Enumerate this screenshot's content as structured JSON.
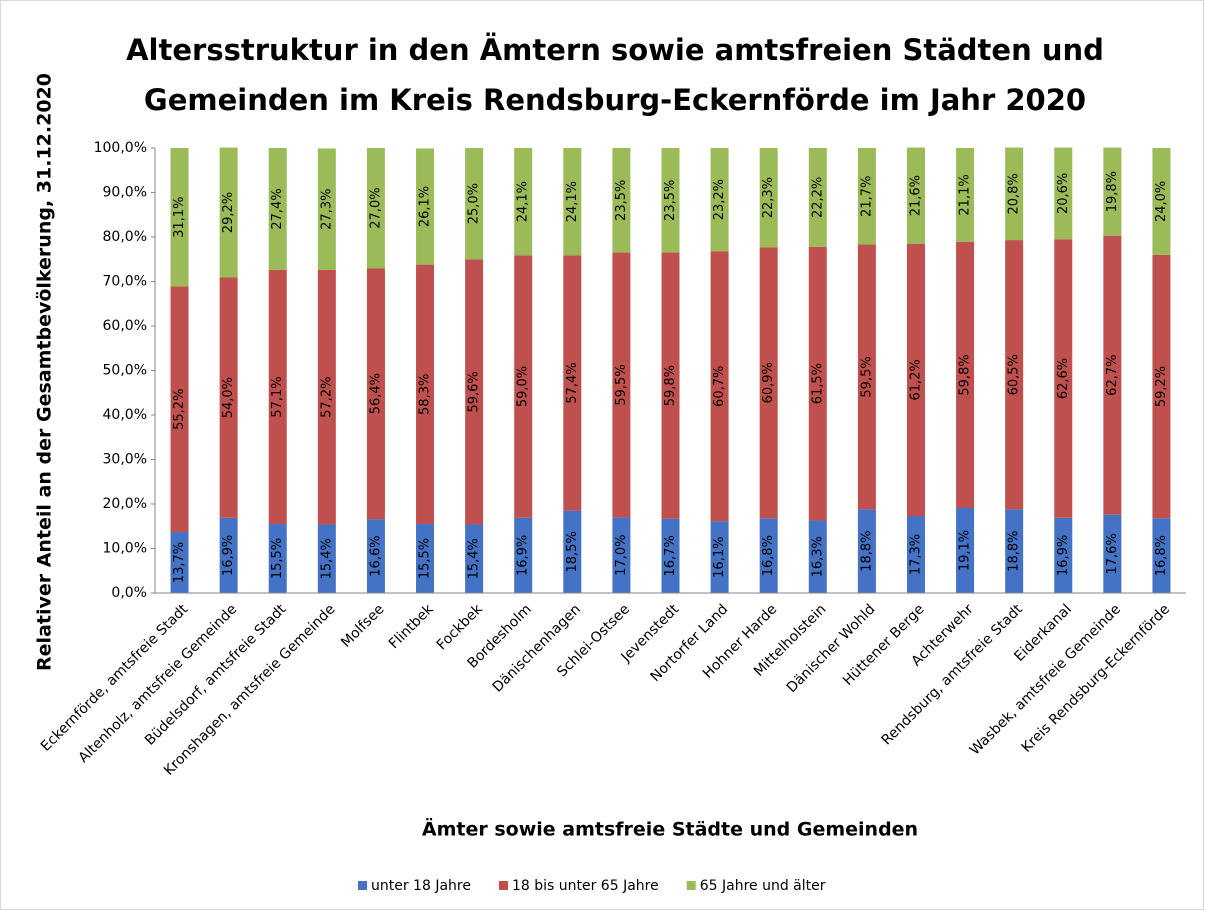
{
  "chart_data": {
    "type": "stacked_bar",
    "title": [
      "Altersstruktur in den Ämtern sowie amtsfreien Städten und",
      "Gemeinden im Kreis Rendsburg-Eckernförde im Jahr 2020"
    ],
    "x_label": "Ämter sowie amtsfreie Städte und Gemeinden",
    "y_label": "Relativer Anteil an der Gesamtbevölkerung, 31.12.2020",
    "categories": [
      "Eckernförde, amtsfreie Stadt",
      "Altenholz, amtsfreie Gemeinde",
      "Büdelsdorf, amtsfreie Stadt",
      "Kronshagen, amtsfreie Gemeinde",
      "Molfsee",
      "Flintbek",
      "Fockbek",
      "Bordesholm",
      "Dänischenhagen",
      "Schlei-Ostsee",
      "Jevenstedt",
      "Nortorfer Land",
      "Hohner Harde",
      "Mittelholstein",
      "Dänischer Wohld",
      "Hüttener Berge",
      "Achterwehr",
      "Rendsburg, amtsfreie Stadt",
      "Eiderkanal",
      "Wasbek, amtsfreie Gemeinde",
      "Kreis Rendsburg-Eckernförde"
    ],
    "series": [
      {
        "name": "unter 18 Jahre",
        "color": "#4472c4",
        "values": [
          13.7,
          16.9,
          15.5,
          15.4,
          16.6,
          15.5,
          15.4,
          16.9,
          18.5,
          17.0,
          16.7,
          16.1,
          16.8,
          16.3,
          18.8,
          17.3,
          19.1,
          18.8,
          16.9,
          17.6,
          16.8
        ],
        "value_labels": [
          "13,7%",
          "16,9%",
          "15,5%",
          "15,4%",
          "16,6%",
          "15,5%",
          "15,4%",
          "16,9%",
          "18,5%",
          "17,0%",
          "16,7%",
          "16,1%",
          "16,8%",
          "16,3%",
          "18,8%",
          "17,3%",
          "19,1%",
          "18,8%",
          "16,9%",
          "17,6%",
          "16,8%"
        ]
      },
      {
        "name": "18 bis unter 65 Jahre",
        "color": "#c0504d",
        "values": [
          55.2,
          54.0,
          57.1,
          57.2,
          56.4,
          58.3,
          59.6,
          59.0,
          57.4,
          59.5,
          59.8,
          60.7,
          60.9,
          61.5,
          59.5,
          61.2,
          59.8,
          60.5,
          62.6,
          62.7,
          59.2
        ],
        "value_labels": [
          "55,2%",
          "54,0%",
          "57,1%",
          "57,2%",
          "56,4%",
          "58,3%",
          "59,6%",
          "59,0%",
          "57,4%",
          "59,5%",
          "59,8%",
          "60,7%",
          "60,9%",
          "61,5%",
          "59,5%",
          "61,2%",
          "59,8%",
          "60,5%",
          "62,6%",
          "62,7%",
          "59,2%"
        ]
      },
      {
        "name": "65 Jahre und älter",
        "color": "#9bbb59",
        "values": [
          31.1,
          29.2,
          27.4,
          27.3,
          27.0,
          26.1,
          25.0,
          24.1,
          24.1,
          23.5,
          23.5,
          23.2,
          22.3,
          22.2,
          21.7,
          21.6,
          21.1,
          20.8,
          20.6,
          19.8,
          24.0
        ],
        "value_labels": [
          "31,1%",
          "29,2%",
          "27,4%",
          "27,3%",
          "27,0%",
          "26,1%",
          "25,0%",
          "24,1%",
          "24,1%",
          "23,5%",
          "23,5%",
          "23,2%",
          "22,3%",
          "22,2%",
          "21,7%",
          "21,6%",
          "21,1%",
          "20,8%",
          "20,6%",
          "19,8%",
          "24,0%"
        ]
      }
    ],
    "ylim": [
      0,
      100
    ],
    "yticks": [
      {
        "value": 0,
        "label": "0,0%"
      },
      {
        "value": 10,
        "label": "10,0%"
      },
      {
        "value": 20,
        "label": "20,0%"
      },
      {
        "value": 30,
        "label": "30,0%"
      },
      {
        "value": 40,
        "label": "40,0%"
      },
      {
        "value": 50,
        "label": "50,0%"
      },
      {
        "value": 60,
        "label": "60,0%"
      },
      {
        "value": 70,
        "label": "70,0%"
      },
      {
        "value": 80,
        "label": "80,0%"
      },
      {
        "value": 90,
        "label": "90,0%"
      },
      {
        "value": 100,
        "label": "100,0%"
      }
    ],
    "legend": "bottom"
  }
}
